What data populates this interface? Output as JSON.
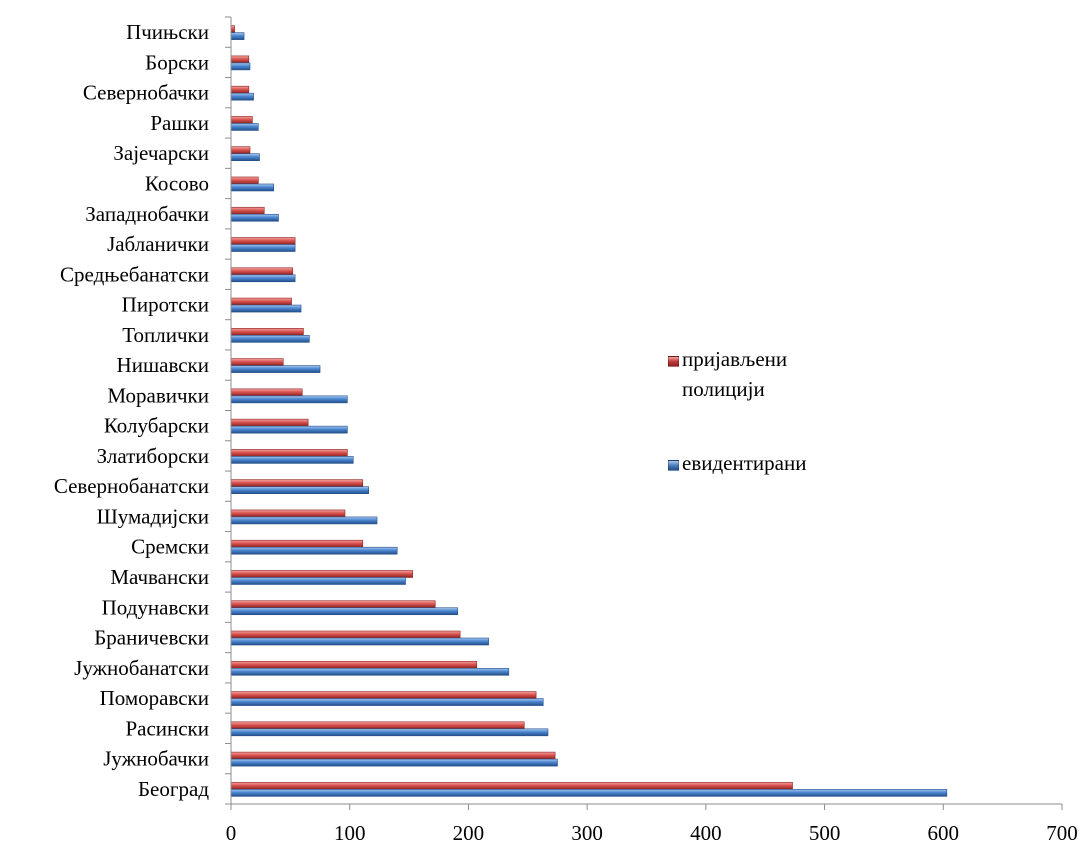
{
  "chart_data": {
    "type": "bar",
    "orientation": "horizontal",
    "categories": [
      "Београд",
      "Јужнобачки",
      "Расински",
      "Поморавски",
      "Јужнобанатски",
      "Браничевски",
      "Подунавски",
      "Мачвански",
      "Сремски",
      "Шумадијски",
      "Севернобанатски",
      "Златиборски",
      "Колубарски",
      "Моравички",
      "Нишавски",
      "Топлички",
      "Пиротски",
      "Средњебанатски",
      "Јабланички",
      "Западнобачки",
      "Косово",
      "Зајечарски",
      "Рашки",
      "Севернобачки",
      "Борски",
      "Пчињски"
    ],
    "series": [
      {
        "name": "пријављени полицији",
        "color": "#c0393b",
        "values": [
          473,
          273,
          247,
          257,
          207,
          193,
          172,
          153,
          111,
          96,
          111,
          98,
          65,
          60,
          44,
          61,
          51,
          52,
          54,
          28,
          23,
          16,
          18,
          15,
          15,
          3
        ]
      },
      {
        "name": "евидентирани",
        "color": "#4a7ebb",
        "values": [
          603,
          275,
          267,
          263,
          234,
          217,
          191,
          147,
          140,
          123,
          116,
          103,
          98,
          98,
          75,
          66,
          59,
          54,
          54,
          40,
          36,
          24,
          23,
          19,
          16,
          11
        ]
      }
    ],
    "xlim": [
      0,
      700
    ],
    "xticks": [
      0,
      100,
      200,
      300,
      400,
      500,
      600,
      700
    ],
    "xlabel": "",
    "ylabel": "",
    "title": "",
    "grid": false,
    "legend_position": "right"
  }
}
